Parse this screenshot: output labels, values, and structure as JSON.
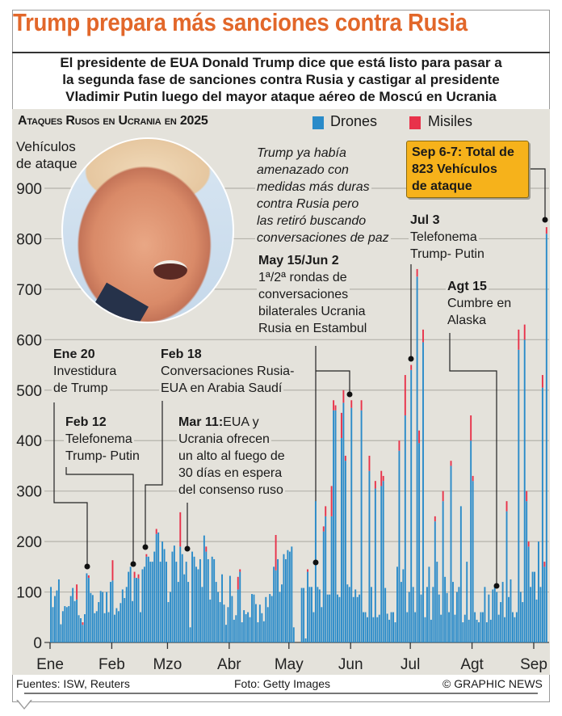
{
  "header": {
    "title": "Trump prepara más sanciones contra Rusia",
    "subtitle_lines": [
      "El presidente de EUA Donald Trump dice que está listo para pasar a",
      "la segunda fase de sanciones contra Rusia y castigar al presidente",
      "Vladimir Putin luego del mayor ataque aéreo de Moscú en Ucrania"
    ]
  },
  "legend": {
    "title": "Ataques Rusos en Ucrania en 2025",
    "items": [
      {
        "label": "Drones",
        "color": "#2a8bc9"
      },
      {
        "label": "Misiles",
        "color": "#e8324a"
      }
    ]
  },
  "annotations": {
    "y_title": [
      "Vehículos",
      "de ataque"
    ],
    "threat_note": [
      "Trump ya había",
      "amenazado con",
      "medidas más duras",
      "contra Rusia pero",
      "las retiró buscando",
      "conversaciones de paz"
    ],
    "callout": [
      "Sep 6-7: Total de",
      "823 Vehículos",
      "de ataque"
    ],
    "jul3": {
      "date": "Jul 3",
      "lines": [
        "Telefonema",
        "Trump- Putin"
      ]
    },
    "may15": {
      "date": "May 15/Jun 2",
      "lines": [
        "1ª/2ª rondas de",
        "conversaciones",
        "bilaterales Ucrania",
        "Rusia en Estambul"
      ]
    },
    "agt15": {
      "date": "Agt 15",
      "lines": [
        "Cumbre en",
        "Alaska"
      ]
    },
    "ene20": {
      "date": "Ene 20",
      "lines": [
        "Investidura",
        "de Trump"
      ]
    },
    "feb18": {
      "date": "Feb 18",
      "lines": [
        "Conversaciones Rusia-",
        "EUA en Arabia Saudí"
      ]
    },
    "feb12": {
      "date": "Feb 12",
      "lines": [
        "Telefonema",
        "Trump- Putin"
      ]
    },
    "mar11": {
      "date": "Mar 11:",
      "first": " EUA y",
      "lines": [
        "Ucrania ofrecen",
        "un alto al fuego de",
        "30 días en espera",
        "del consenso ruso"
      ]
    }
  },
  "footer": {
    "sources": "Fuentes: ISW, Reuters",
    "photo_credit": "Foto: Getty Images",
    "copyright": "© GRAPHIC NEWS"
  },
  "chart_data": {
    "type": "bar",
    "stacked": true,
    "title": "Ataques Rusos en Ucrania en 2025",
    "ylabel": "Vehículos de ataque",
    "ylim": [
      0,
      900
    ],
    "y_ticks": [
      "0",
      "100",
      "200",
      "300",
      "400",
      "500",
      "600",
      "700",
      "800",
      "900"
    ],
    "grid": true,
    "legend_position": "top",
    "colors": {
      "drones": "#2a8bc9",
      "missiles": "#e8324a"
    },
    "months": [
      {
        "label": "Ene",
        "drones": [
          110,
          70,
          92,
          103,
          125,
          36,
          62,
          72,
          70,
          72,
          92,
          108,
          82,
          85,
          54,
          48,
          35,
          56,
          137,
          128,
          98,
          94,
          58,
          62,
          80,
          102,
          100,
          58,
          100,
          60,
          120
        ],
        "missiles": [
          0,
          0,
          0,
          0,
          0,
          0,
          0,
          0,
          0,
          0,
          0,
          0,
          0,
          30,
          0,
          0,
          5,
          0,
          0,
          5,
          0,
          0,
          0,
          0,
          0,
          0,
          0,
          0,
          0,
          0,
          0
        ]
      },
      {
        "label": "Feb",
        "drones": [
          123,
          55,
          68,
          62,
          78,
          105,
          88,
          110,
          140,
          150,
          82,
          128,
          128,
          127,
          60,
          145,
          150,
          170,
          170,
          160,
          160,
          180,
          215,
          218,
          160,
          200,
          185,
          160
        ],
        "missiles": [
          40,
          0,
          0,
          0,
          0,
          0,
          0,
          0,
          0,
          0,
          0,
          12,
          0,
          8,
          0,
          0,
          0,
          5,
          0,
          0,
          0,
          0,
          10,
          0,
          0,
          0,
          0,
          0
        ]
      },
      {
        "label": "Mzo",
        "drones": [
          80,
          100,
          180,
          192,
          160,
          120,
          190,
          175,
          135,
          160,
          120,
          30,
          180,
          170,
          150,
          145,
          165,
          110,
          212,
          180,
          165,
          85,
          170,
          165,
          120,
          100,
          80,
          135,
          75,
          35,
          70
        ],
        "missiles": [
          0,
          0,
          0,
          0,
          0,
          0,
          68,
          0,
          0,
          0,
          0,
          0,
          0,
          0,
          0,
          0,
          0,
          0,
          0,
          10,
          0,
          0,
          0,
          0,
          0,
          0,
          0,
          0,
          0,
          0,
          0
        ]
      },
      {
        "label": "Abr",
        "drones": [
          132,
          92,
          45,
          54,
          105,
          140,
          40,
          64,
          56,
          60,
          50,
          96,
          95,
          76,
          40,
          75,
          58,
          42,
          90,
          70,
          96,
          92,
          150,
          143,
          165,
          100,
          115,
          175,
          165,
          183
        ],
        "missiles": [
          0,
          0,
          0,
          0,
          25,
          5,
          0,
          0,
          0,
          0,
          0,
          0,
          0,
          0,
          0,
          0,
          0,
          0,
          0,
          0,
          0,
          0,
          0,
          70,
          0,
          0,
          0,
          0,
          0,
          0
        ]
      },
      {
        "label": "May",
        "drones": [
          180,
          190,
          30,
          0,
          0,
          0,
          108,
          108,
          8,
          140,
          110,
          110,
          60,
          280,
          110,
          105,
          70,
          220,
          250,
          95,
          95,
          250,
          460,
          460,
          95,
          90,
          405,
          475,
          360,
          115,
          110
        ],
        "missiles": [
          0,
          0,
          0,
          0,
          0,
          0,
          0,
          0,
          0,
          5,
          0,
          0,
          0,
          0,
          0,
          0,
          0,
          10,
          20,
          0,
          0,
          60,
          20,
          10,
          0,
          0,
          50,
          25,
          10,
          0,
          0
        ]
      },
      {
        "label": "Jun",
        "drones": [
          465,
          90,
          105,
          90,
          95,
          460,
          60,
          60,
          50,
          340,
          110,
          50,
          305,
          50,
          55,
          310,
          320,
          108,
          57,
          45,
          60,
          60,
          40,
          150,
          380,
          120,
          145,
          450,
          60,
          100
        ],
        "missiles": [
          15,
          0,
          0,
          0,
          0,
          20,
          0,
          0,
          0,
          30,
          0,
          0,
          15,
          0,
          0,
          30,
          10,
          0,
          0,
          0,
          0,
          0,
          0,
          0,
          20,
          0,
          0,
          80,
          0,
          0
        ]
      },
      {
        "label": "Jul",
        "drones": [
          540,
          110,
          60,
          725,
          395,
          95,
          595,
          50,
          110,
          150,
          45,
          110,
          240,
          160,
          95,
          55,
          280,
          130,
          98,
          60,
          350,
          120,
          55,
          100,
          110,
          270,
          40,
          55,
          160,
          45,
          400
        ],
        "missiles": [
          10,
          0,
          0,
          15,
          25,
          0,
          25,
          0,
          0,
          0,
          0,
          0,
          10,
          0,
          0,
          0,
          20,
          0,
          0,
          0,
          10,
          0,
          0,
          0,
          0,
          0,
          0,
          0,
          0,
          0,
          50
        ]
      },
      {
        "label": "Agt",
        "drones": [
          320,
          60,
          45,
          40,
          60,
          60,
          110,
          40,
          95,
          45,
          105,
          110,
          100,
          55,
          80,
          120,
          50,
          260,
          90,
          125,
          60,
          50,
          60,
          580,
          100,
          80,
          600,
          280,
          190,
          110,
          140
        ],
        "missiles": [
          10,
          0,
          0,
          0,
          0,
          0,
          0,
          0,
          0,
          0,
          0,
          0,
          0,
          0,
          0,
          0,
          0,
          20,
          0,
          0,
          0,
          0,
          0,
          40,
          0,
          0,
          30,
          20,
          10,
          0,
          0
        ]
      },
      {
        "label": "Sep",
        "drones": [
          140,
          85,
          200,
          110,
          505,
          150,
          810
        ],
        "missiles": [
          0,
          0,
          0,
          0,
          25,
          10,
          13
        ]
      }
    ]
  }
}
